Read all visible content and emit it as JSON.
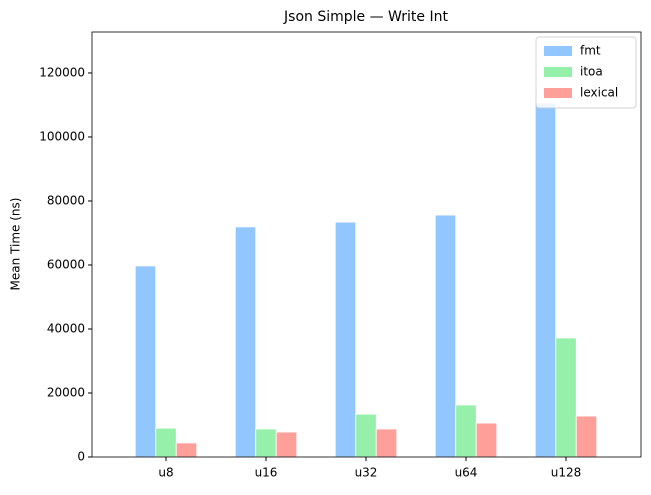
{
  "chart_data": {
    "type": "bar",
    "title": "Json Simple — Write Int",
    "y_label": "Mean Time (ns)",
    "categories": [
      "u8",
      "u16",
      "u32",
      "u64",
      "u128"
    ],
    "series": [
      {
        "name": "fmt",
        "color": "#92c6ff",
        "values": [
          59700,
          71900,
          73400,
          75600,
          110600
        ]
      },
      {
        "name": "itoa",
        "color": "#97f0aa",
        "values": [
          9000,
          8750,
          13400,
          16250,
          37200
        ]
      },
      {
        "name": "lexical",
        "color": "#ff9f9a",
        "values": [
          4400,
          7800,
          8750,
          10600,
          12800
        ]
      }
    ],
    "ylim": [
      0,
      132800
    ],
    "yticks": [
      0,
      20000,
      40000,
      60000,
      80000,
      100000,
      120000
    ],
    "legend": "upper right"
  }
}
